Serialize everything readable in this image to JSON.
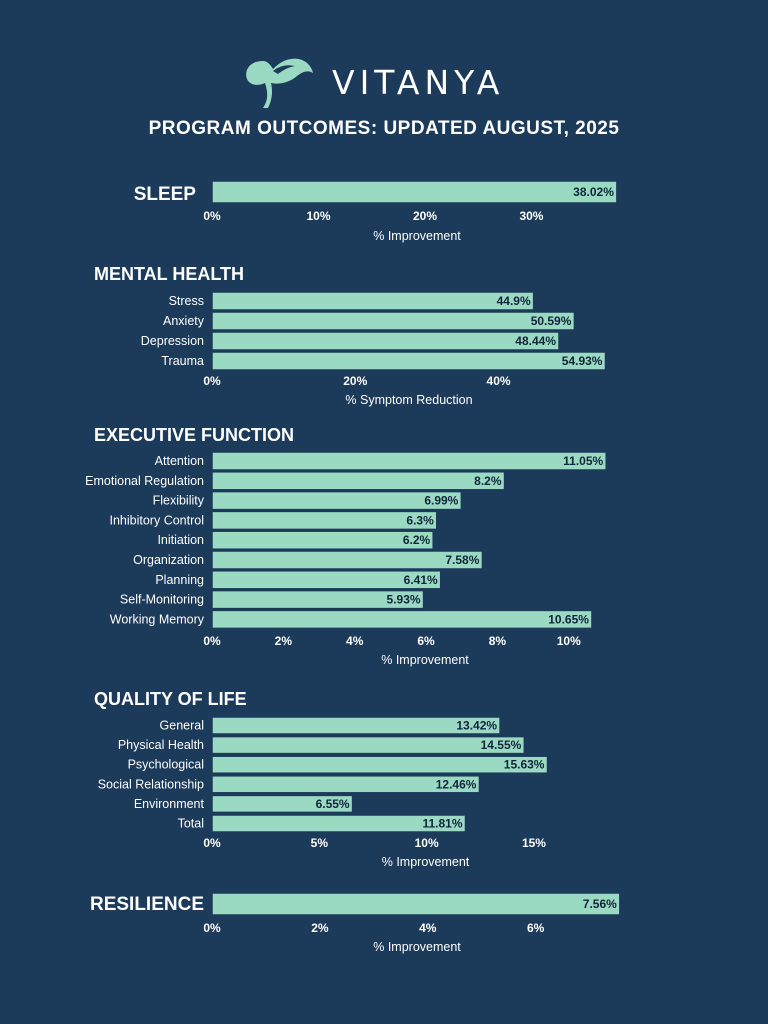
{
  "brand": {
    "name": "VITANYA",
    "logo_icon": "brain-leaf-icon",
    "accent_color": "#9ad9c2",
    "background_color": "#1c3a5a"
  },
  "page_title": "PROGRAM OUTCOMES: UPDATED AUGUST, 2025",
  "chart_data": [
    {
      "type": "bar",
      "orientation": "horizontal",
      "title": "SLEEP",
      "categories": [
        ""
      ],
      "values": [
        38.02
      ],
      "value_labels": [
        "38.02%"
      ],
      "xlabel": "% Improvement",
      "xlim": [
        0,
        38.5
      ],
      "ticks": [
        0,
        10,
        20,
        30
      ],
      "tick_labels": [
        "0%",
        "10%",
        "20%",
        "30%"
      ]
    },
    {
      "type": "bar",
      "orientation": "horizontal",
      "title": "MENTAL HEALTH",
      "categories": [
        "Stress",
        "Anxiety",
        "Depression",
        "Trauma"
      ],
      "values": [
        44.9,
        50.59,
        48.44,
        54.93
      ],
      "value_labels": [
        "44.9%",
        "50.59%",
        "48.44%",
        "54.93%"
      ],
      "xlabel": "% Symptom Reduction",
      "xlim": [
        0,
        55
      ],
      "ticks": [
        0,
        20,
        40
      ],
      "tick_labels": [
        "0%",
        "20%",
        "40%"
      ]
    },
    {
      "type": "bar",
      "orientation": "horizontal",
      "title": "EXECUTIVE FUNCTION",
      "categories": [
        "Attention",
        "Emotional Regulation",
        "Flexibility",
        "Inhibitory Control",
        "Initiation",
        "Organization",
        "Planning",
        "Self-Monitoring",
        "Working Memory"
      ],
      "values": [
        11.05,
        8.2,
        6.99,
        6.3,
        6.2,
        7.58,
        6.41,
        5.93,
        10.65
      ],
      "value_labels": [
        "11.05%",
        "8.2%",
        "6.99%",
        "6.3%",
        "6.2%",
        "7.58%",
        "6.41%",
        "5.93%",
        "10.65%"
      ],
      "xlabel": "% Improvement",
      "xlim": [
        0,
        11.1
      ],
      "ticks": [
        0,
        2,
        4,
        6,
        8,
        10
      ],
      "tick_labels": [
        "0%",
        "2%",
        "4%",
        "6%",
        "8%",
        "10%"
      ]
    },
    {
      "type": "bar",
      "orientation": "horizontal",
      "title": "QUALITY OF LIFE",
      "categories": [
        "General",
        "Physical Health",
        "Psychological",
        "Social Relationship",
        "Environment",
        "Total"
      ],
      "values": [
        13.42,
        14.55,
        15.63,
        12.46,
        6.55,
        11.81
      ],
      "value_labels": [
        "13.42%",
        "14.55%",
        "15.63%",
        "12.46%",
        "6.55%",
        "11.81%"
      ],
      "xlabel": "% Improvement",
      "xlim": [
        0,
        15.7
      ],
      "ticks": [
        0,
        5,
        10,
        15
      ],
      "tick_labels": [
        "0%",
        "5%",
        "10%",
        "15%"
      ]
    },
    {
      "type": "bar",
      "orientation": "horizontal",
      "title": "RESILIENCE",
      "categories": [
        ""
      ],
      "values": [
        7.56
      ],
      "value_labels": [
        "7.56%"
      ],
      "xlabel": "% Improvement",
      "xlim": [
        0,
        7.6
      ],
      "ticks": [
        0,
        2,
        4,
        6
      ],
      "tick_labels": [
        "0%",
        "2%",
        "4%",
        "6%"
      ]
    }
  ]
}
